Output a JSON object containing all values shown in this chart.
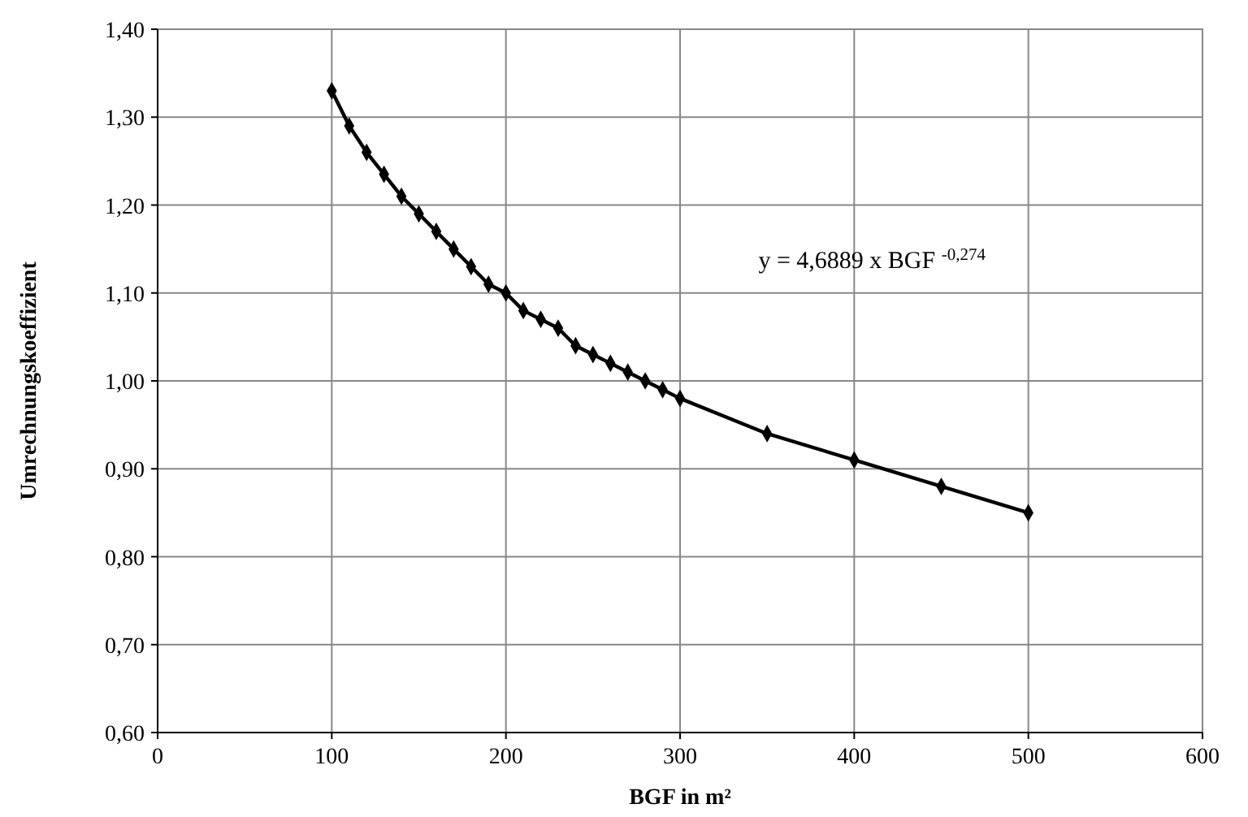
{
  "chart_data": {
    "type": "line",
    "xlabel": "BGF in m²",
    "ylabel": "Umrechnungskoeffizient",
    "x": [
      100,
      110,
      120,
      130,
      140,
      150,
      160,
      170,
      180,
      190,
      200,
      210,
      220,
      230,
      240,
      250,
      260,
      270,
      280,
      290,
      300,
      350,
      400,
      450,
      500
    ],
    "series": [
      {
        "color": "#000000",
        "values": [
          1.33,
          1.29,
          1.26,
          1.235,
          1.21,
          1.19,
          1.17,
          1.15,
          1.13,
          1.11,
          1.1,
          1.08,
          1.07,
          1.06,
          1.04,
          1.03,
          1.02,
          1.01,
          1.0,
          0.99,
          0.98,
          0.94,
          0.91,
          0.88,
          0.85
        ]
      }
    ],
    "xlim": [
      0,
      600
    ],
    "xticks": [
      0,
      100,
      200,
      300,
      400,
      500,
      600
    ],
    "ylim": [
      0.6,
      1.4
    ],
    "yticks": [
      {
        "value": 0.6,
        "label": "0,60"
      },
      {
        "value": 0.7,
        "label": "0,70"
      },
      {
        "value": 0.8,
        "label": "0,80"
      },
      {
        "value": 0.9,
        "label": "0,90"
      },
      {
        "value": 1.0,
        "label": "1,00"
      },
      {
        "value": 1.1,
        "label": "1,10"
      },
      {
        "value": 1.2,
        "label": "1,20"
      },
      {
        "value": 1.3,
        "label": "1,30"
      },
      {
        "value": 1.4,
        "label": "1,40"
      }
    ],
    "annotations": [
      "y = 4,6889 x BGF $^{-0,274}$"
    ],
    "grid": true,
    "marker": "diamond",
    "line_style": "solid"
  }
}
